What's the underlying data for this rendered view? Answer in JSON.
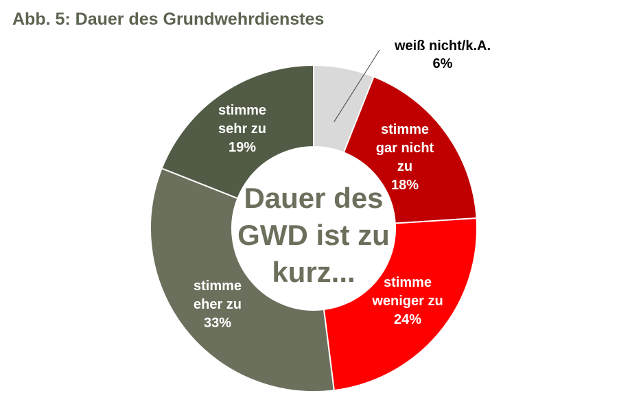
{
  "chart_data": {
    "type": "pie",
    "subtype": "donut",
    "title": "Abb. 5: Dauer des Grundwehrdienstes",
    "center_text": [
      "Dauer des",
      "GWD ist zu",
      "kurz..."
    ],
    "legend": "none",
    "slices": [
      {
        "label_lines": [
          "weiß nicht/k.A.",
          "6%"
        ],
        "value": 6,
        "color": "#d9d9d9",
        "label_color": "#000000"
      },
      {
        "label_lines": [
          "stimme",
          "gar nicht",
          "zu",
          "18%"
        ],
        "value": 18,
        "color": "#c00000",
        "label_color": "#ffffff"
      },
      {
        "label_lines": [
          "stimme",
          "weniger zu",
          "24%"
        ],
        "value": 24,
        "color": "#ff0000",
        "label_color": "#ffffff"
      },
      {
        "label_lines": [
          "stimme",
          "eher zu",
          "33%"
        ],
        "value": 33,
        "color": "#6b705c",
        "label_color": "#ffffff"
      },
      {
        "label_lines": [
          "stimme",
          "sehr zu",
          "19%"
        ],
        "value": 19,
        "color": "#525b45",
        "label_color": "#ffffff"
      }
    ]
  }
}
